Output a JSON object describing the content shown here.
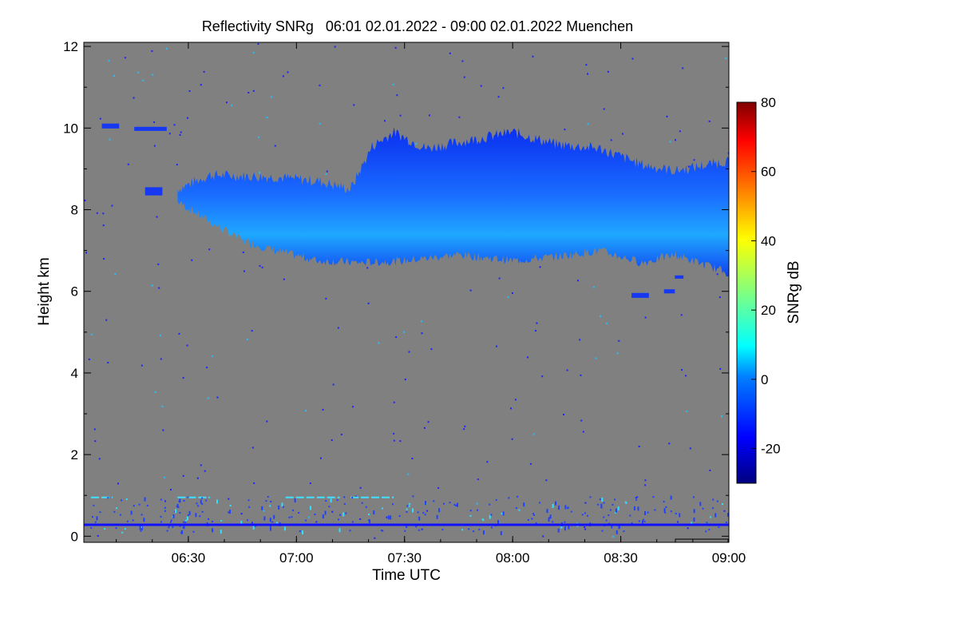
{
  "chart_data": {
    "type": "heatmap",
    "title": "Reflectivity SNRg   06:01 02.01.2022 - 09:00 02.01.2022 Muenchen",
    "xlabel": "Time UTC",
    "ylabel": "Height km",
    "x_range": [
      "06:01",
      "09:00"
    ],
    "x_ticks": [
      "06:30",
      "07:00",
      "07:30",
      "08:00",
      "08:30",
      "09:00"
    ],
    "ylim": [
      -0.15,
      12.1
    ],
    "y_ticks": [
      "0",
      "2",
      "4",
      "6",
      "8",
      "10",
      "12"
    ],
    "colorbar": {
      "label": "SNRg dB",
      "range": [
        -30,
        80
      ],
      "ticks": [
        "-20",
        "0",
        "20",
        "40",
        "60",
        "80"
      ]
    },
    "background_color": "#808080",
    "cloud_layer": {
      "description_visible": false,
      "top_km": [
        [
          6.45,
          8.5
        ],
        [
          6.6,
          8.85
        ],
        [
          6.9,
          8.8
        ],
        [
          7.1,
          8.7
        ],
        [
          7.25,
          8.5
        ],
        [
          7.35,
          9.55
        ],
        [
          7.45,
          9.9
        ],
        [
          7.6,
          9.5
        ],
        [
          7.8,
          9.7
        ],
        [
          8.0,
          9.9
        ],
        [
          8.2,
          9.6
        ],
        [
          8.4,
          9.5
        ],
        [
          8.6,
          9.1
        ],
        [
          8.75,
          8.95
        ],
        [
          9.0,
          9.2
        ]
      ],
      "base_km": [
        [
          6.45,
          8.2
        ],
        [
          6.6,
          7.7
        ],
        [
          6.75,
          7.25
        ],
        [
          6.9,
          7.0
        ],
        [
          7.1,
          6.75
        ],
        [
          7.3,
          6.7
        ],
        [
          7.5,
          6.75
        ],
        [
          7.75,
          6.9
        ],
        [
          8.0,
          6.75
        ],
        [
          8.2,
          6.85
        ],
        [
          8.4,
          7.0
        ],
        [
          8.6,
          6.7
        ],
        [
          8.75,
          6.9
        ],
        [
          9.0,
          6.45
        ]
      ]
    },
    "ground_line_km": 0.28
  }
}
